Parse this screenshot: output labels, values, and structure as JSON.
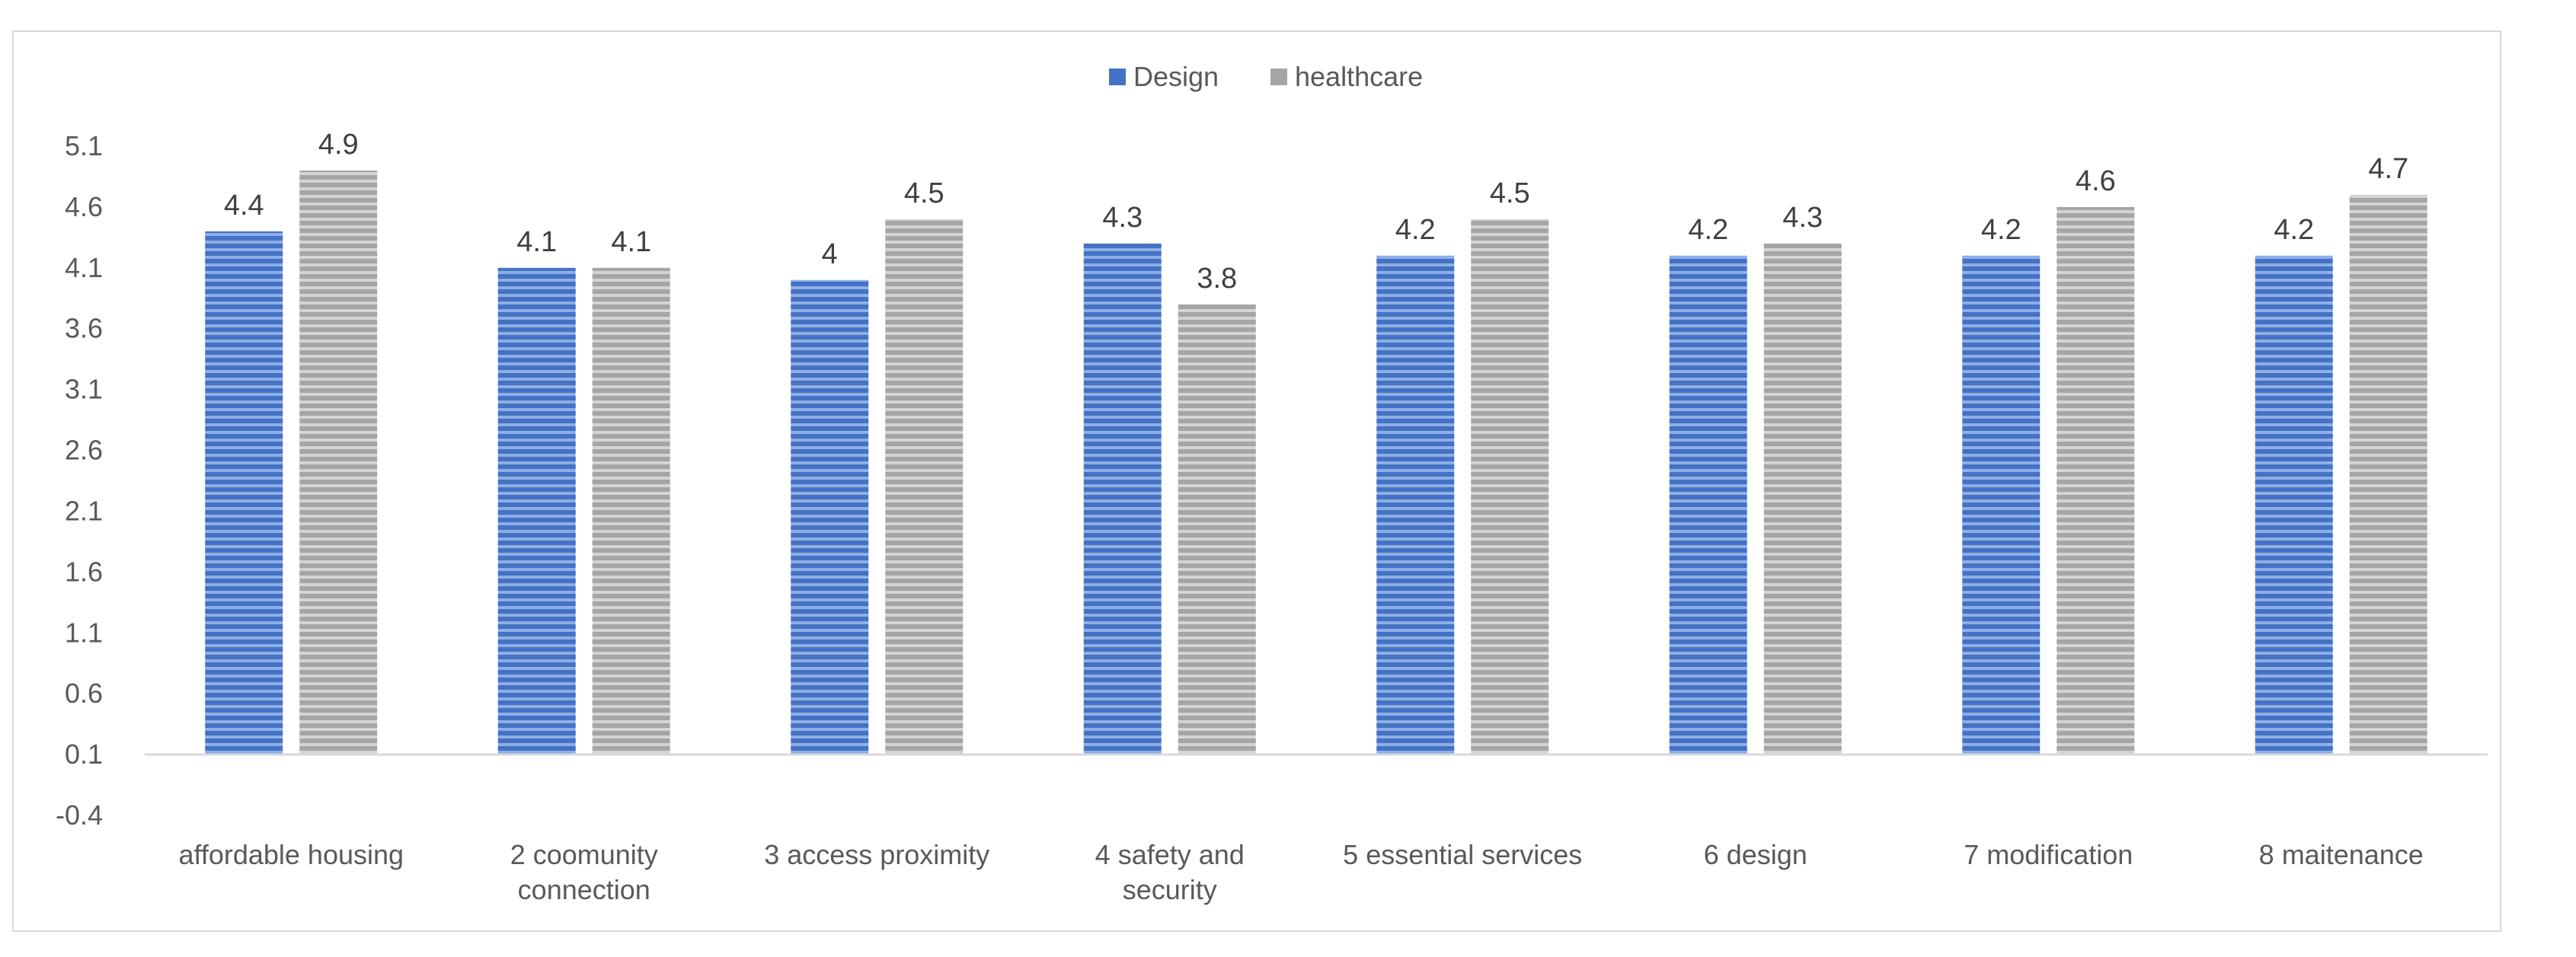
{
  "chart_data": {
    "type": "bar",
    "title": "",
    "xlabel": "",
    "ylabel": "",
    "ylim": [
      -0.4,
      5.1
    ],
    "yticks": [
      "5.1",
      "4.6",
      "4.1",
      "3.6",
      "3.1",
      "2.6",
      "2.1",
      "1.6",
      "1.1",
      "0.6",
      "0.1",
      "-0.4"
    ],
    "legend_position": "top-center",
    "grid": false,
    "categories": [
      [
        "affordable housing"
      ],
      [
        "2 coomunity",
        "connection"
      ],
      [
        "3 access proximity"
      ],
      [
        "4 safety and",
        "security"
      ],
      [
        "5 essential services"
      ],
      [
        "6 design"
      ],
      [
        "7 modification"
      ],
      [
        "8 maitenance"
      ]
    ],
    "series": [
      {
        "name": "Design",
        "color": "#4472c4",
        "values": [
          4.4,
          4.1,
          4,
          4.3,
          4.2,
          4.2,
          4.2,
          4.2
        ],
        "labels": [
          "4.4",
          "4.1",
          "4",
          "4.3",
          "4.2",
          "4.2",
          "4.2",
          "4.2"
        ]
      },
      {
        "name": "healthcare",
        "color": "#a5a5a5",
        "values": [
          4.9,
          4.1,
          4.5,
          3.8,
          4.5,
          4.3,
          4.6,
          4.7
        ],
        "labels": [
          "4.9",
          "4.1",
          "4.5",
          "3.8",
          "4.5",
          "4.3",
          "4.6",
          "4.7"
        ]
      }
    ]
  }
}
